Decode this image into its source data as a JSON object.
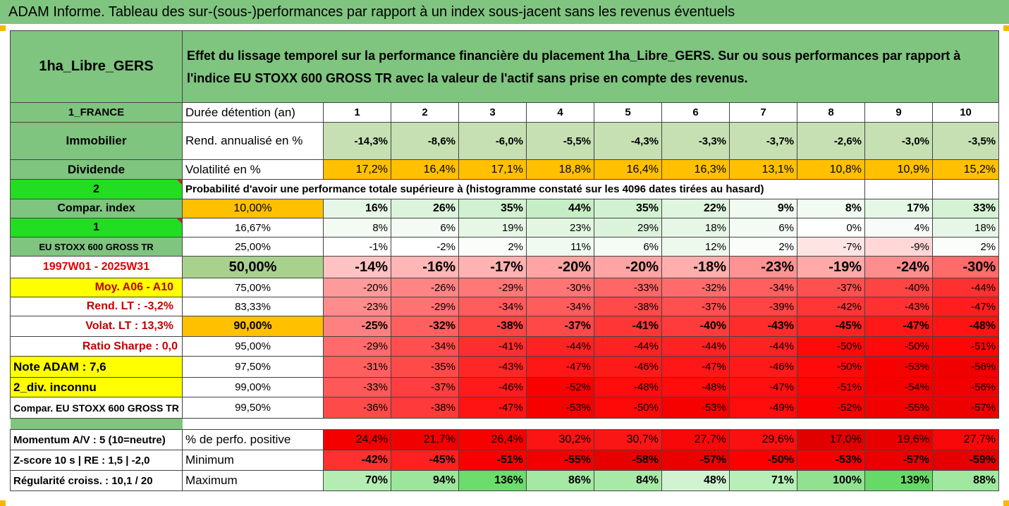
{
  "title": "ADAM Informe. Tableau des sur-(sous-)performances par rapport à un index sous-jacent sans les revenus éventuels",
  "fund_name": "1ha_Libre_GERS",
  "description": "Effet du lissage temporel sur la performance financière du placement 1ha_Libre_GERS. Sur ou sous performances par rapport à l'indice EU STOXX 600 GROSS TR avec la valeur de l'actif sans prise en compte des revenus.",
  "years": [
    "1",
    "2",
    "3",
    "4",
    "5",
    "6",
    "7",
    "8",
    "9",
    "10"
  ],
  "rows": [
    {
      "left": "1_FRANCE",
      "label": "Durée détention (an)",
      "values": [
        "1",
        "2",
        "3",
        "4",
        "5",
        "6",
        "7",
        "8",
        "9",
        "10"
      ]
    },
    {
      "left": "Immobilier",
      "label": "Rend. annualisé en %",
      "values": [
        "-14,3%",
        "-8,6%",
        "-6,0%",
        "-5,5%",
        "-4,3%",
        "-3,3%",
        "-3,7%",
        "-2,6%",
        "-3,0%",
        "-3,5%"
      ]
    },
    {
      "left": "Dividende",
      "label": "Volatilité en %",
      "values": [
        "17,2%",
        "16,4%",
        "17,1%",
        "18,8%",
        "16,4%",
        "16,3%",
        "13,1%",
        "10,8%",
        "10,9%",
        "15,2%"
      ]
    }
  ],
  "prob_left": "2",
  "prob_text": "Probabilité d'avoir une performance totale supérieure à (histogramme constaté sur les 4096 dates tirées au hasard)",
  "pct_rows": [
    {
      "left": "Compar. index",
      "pct": "10,00%",
      "values": [
        "16%",
        "26%",
        "35%",
        "44%",
        "35%",
        "22%",
        "9%",
        "8%",
        "17%",
        "33%"
      ]
    },
    {
      "left": "1",
      "pct": "16,67%",
      "values": [
        "8%",
        "6%",
        "19%",
        "23%",
        "29%",
        "18%",
        "6%",
        "0%",
        "4%",
        "18%"
      ]
    },
    {
      "left": "EU STOXX 600 GROSS TR",
      "pct": "25,00%",
      "values": [
        "-1%",
        "-2%",
        "2%",
        "11%",
        "6%",
        "12%",
        "2%",
        "-7%",
        "-9%",
        "2%"
      ]
    },
    {
      "left": "1997W01 - 2025W31",
      "pct": "50,00%",
      "values": [
        "-14%",
        "-16%",
        "-17%",
        "-20%",
        "-20%",
        "-18%",
        "-23%",
        "-19%",
        "-24%",
        "-30%"
      ]
    },
    {
      "left": "Moy. A06 - A10",
      "pct": "75,00%",
      "values": [
        "-20%",
        "-26%",
        "-29%",
        "-30%",
        "-33%",
        "-32%",
        "-34%",
        "-37%",
        "-40%",
        "-44%"
      ]
    },
    {
      "left": "Rend. LT :   -3,2%",
      "pct": "83,33%",
      "values": [
        "-23%",
        "-29%",
        "-34%",
        "-34%",
        "-38%",
        "-37%",
        "-39%",
        "-42%",
        "-43%",
        "-47%"
      ]
    },
    {
      "left": "Volat. LT :   13,3%",
      "pct": "90,00%",
      "values": [
        "-25%",
        "-32%",
        "-38%",
        "-37%",
        "-41%",
        "-40%",
        "-43%",
        "-45%",
        "-47%",
        "-48%"
      ]
    },
    {
      "left": "Ratio Sharpe :    0,0",
      "pct": "95,00%",
      "values": [
        "-29%",
        "-34%",
        "-41%",
        "-44%",
        "-44%",
        "-44%",
        "-44%",
        "-50%",
        "-50%",
        "-51%"
      ]
    },
    {
      "left": "Note ADAM : 7,6",
      "pct": "97,50%",
      "values": [
        "-31%",
        "-35%",
        "-43%",
        "-47%",
        "-46%",
        "-47%",
        "-46%",
        "-50%",
        "-53%",
        "-56%"
      ]
    },
    {
      "left": "2_div. inconnu",
      "pct": "99,00%",
      "values": [
        "-33%",
        "-37%",
        "-46%",
        "-52%",
        "-48%",
        "-48%",
        "-47%",
        "-51%",
        "-54%",
        "-56%"
      ]
    },
    {
      "left": "Compar. EU STOXX 600 GROSS TR",
      "pct": "99,50%",
      "values": [
        "-36%",
        "-38%",
        "-47%",
        "-53%",
        "-50%",
        "-53%",
        "-49%",
        "-52%",
        "-55%",
        "-57%"
      ]
    }
  ],
  "bottom_rows": [
    {
      "left": "Momentum A/V : 5 (10=neutre)",
      "label": "% de perfo. positive",
      "values": [
        "24,4%",
        "21,7%",
        "26,4%",
        "30,2%",
        "30,7%",
        "27,7%",
        "29,6%",
        "17,0%",
        "19,6%",
        "27,7%"
      ]
    },
    {
      "left": "Z-score 10 s  |  RE : 1,5  |  -2,0",
      "label": "Minimum",
      "values": [
        "-42%",
        "-45%",
        "-51%",
        "-55%",
        "-58%",
        "-57%",
        "-50%",
        "-53%",
        "-57%",
        "-59%"
      ]
    },
    {
      "left": "Régularité croiss. : 10,1 / 20",
      "label": "Maximum",
      "values": [
        "70%",
        "94%",
        "136%",
        "86%",
        "84%",
        "48%",
        "71%",
        "100%",
        "139%",
        "88%"
      ]
    }
  ]
}
